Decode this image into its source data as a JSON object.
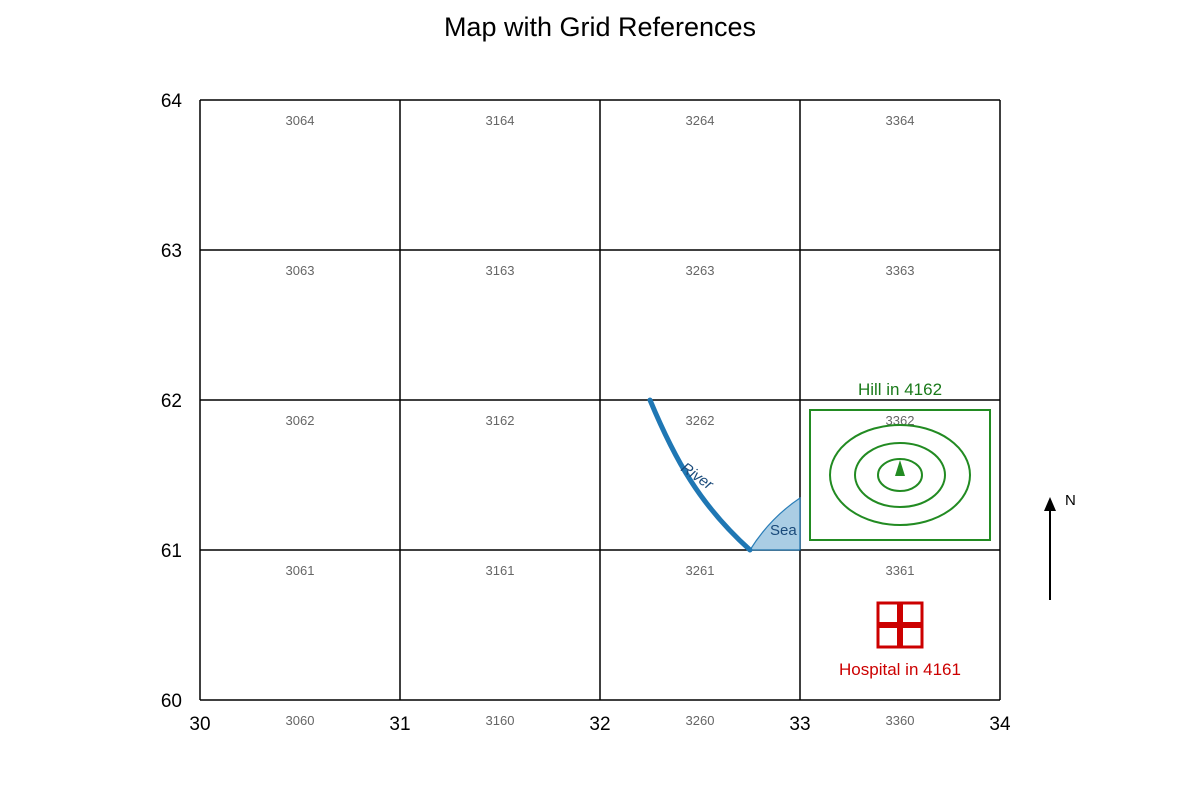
{
  "title": "Map with Grid References",
  "grid": {
    "eastings": [
      "30",
      "31",
      "32",
      "33",
      "34"
    ],
    "northings": [
      "60",
      "61",
      "62",
      "63",
      "64"
    ],
    "cell_labels": [
      [
        "3064",
        "3164",
        "3264",
        "3364"
      ],
      [
        "3063",
        "3163",
        "3263",
        "3363"
      ],
      [
        "3062",
        "3162",
        "3262",
        "3362"
      ],
      [
        "3061",
        "3161",
        "3261",
        "3361"
      ],
      [
        "3060",
        "3160",
        "3260",
        "3360"
      ]
    ]
  },
  "features": {
    "river_label": "River",
    "sea_label": "Sea",
    "hill_label": "Hill in 4162",
    "hospital_label": "Hospital in 4161",
    "north_label": "N"
  },
  "colors": {
    "river": "#1f77b4",
    "sea_fill": "#a6cbe3",
    "sea_text": "#1a4a7a",
    "hill": "#228b22",
    "hill_text": "#1a7a1a",
    "hospital": "#cc0000",
    "grid": "#000000"
  }
}
